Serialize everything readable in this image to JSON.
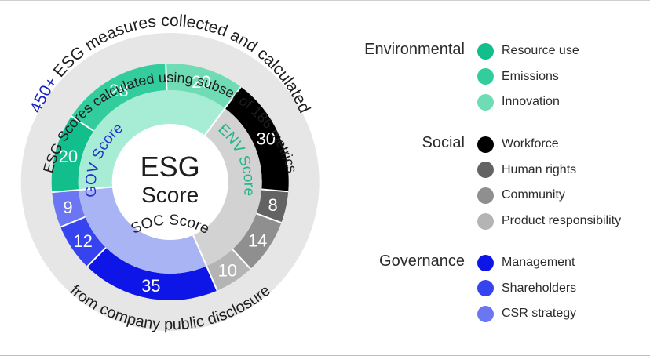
{
  "center": {
    "line1": "ESG",
    "line2": "Score"
  },
  "outer_text": {
    "highlight": "450+",
    "top_line1_rest": " ESG measures collected and calculated",
    "top_line2": "ESG Scores calculated using subset of 186 metrics",
    "bottom": "from company public disclosure"
  },
  "pillars": [
    {
      "key": "env",
      "name": "ENV Score",
      "color": "#a7ecd5",
      "text_color": "#1fb58a"
    },
    {
      "key": "soc",
      "name": "SOC Score",
      "color": "#d2d2d2",
      "text_color": "#1e1e1e"
    },
    {
      "key": "gov",
      "name": "GOV Score",
      "color": "#a9b4f5",
      "text_color": "#2733c8"
    }
  ],
  "segments": [
    {
      "name": "Resource use",
      "value": 20,
      "pillar": "env",
      "color": "#11be8c"
    },
    {
      "name": "Emissions",
      "value": 28,
      "pillar": "env",
      "color": "#33cc9c"
    },
    {
      "name": "Innovation",
      "value": 20,
      "pillar": "env",
      "color": "#6fdcb5"
    },
    {
      "name": "Workforce",
      "value": 30,
      "pillar": "soc",
      "color": "#000000"
    },
    {
      "name": "Human rights",
      "value": 8,
      "pillar": "soc",
      "color": "#636363"
    },
    {
      "name": "Community",
      "value": 14,
      "pillar": "soc",
      "color": "#8f8f8f"
    },
    {
      "name": "Product responsibility",
      "value": 10,
      "pillar": "soc",
      "color": "#b4b4b4"
    },
    {
      "name": "Management",
      "value": 35,
      "pillar": "gov",
      "color": "#0d16e6"
    },
    {
      "name": "Shareholders",
      "value": 12,
      "pillar": "gov",
      "color": "#3644f0"
    },
    {
      "name": "CSR strategy",
      "value": 9,
      "pillar": "gov",
      "color": "#6b76f2"
    }
  ],
  "legend": [
    {
      "group": "Environmental",
      "items": [
        {
          "label": "Resource use",
          "color": "#11be8c"
        },
        {
          "label": "Emissions",
          "color": "#33cc9c"
        },
        {
          "label": "Innovation",
          "color": "#6fdcb5"
        }
      ]
    },
    {
      "group": "Social",
      "items": [
        {
          "label": "Workforce",
          "color": "#000000"
        },
        {
          "label": "Human rights",
          "color": "#636363"
        },
        {
          "label": "Community",
          "color": "#8f8f8f"
        },
        {
          "label": "Product responsibility",
          "color": "#b4b4b4"
        }
      ]
    },
    {
      "group": "Governance",
      "items": [
        {
          "label": "Management",
          "color": "#0d16e6"
        },
        {
          "label": "Shareholders",
          "color": "#3644f0"
        },
        {
          "label": "CSR strategy",
          "color": "#6b76f2"
        }
      ]
    }
  ]
}
